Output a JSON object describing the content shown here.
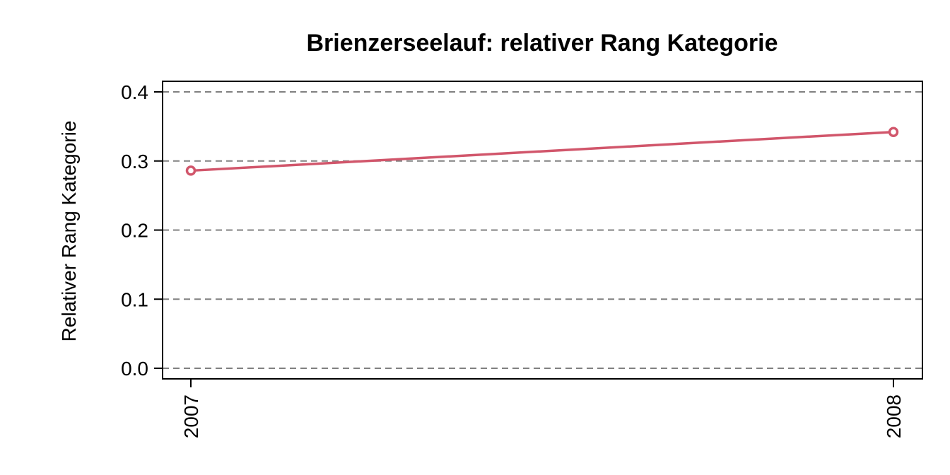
{
  "chart_data": {
    "type": "line",
    "title": "Brienzerseelauf: relativer Rang Kategorie",
    "xlabel": "",
    "ylabel": "Relativer Rang Kategorie",
    "categories": [
      "2007",
      "2008"
    ],
    "series": [
      {
        "values": [
          0.286,
          0.342
        ],
        "color": "#d1566b"
      }
    ],
    "ylim": [
      0.0,
      0.4
    ],
    "yticks": [
      "0.0",
      "0.1",
      "0.2",
      "0.3",
      "0.4"
    ],
    "grid": "horizontal dashed",
    "x_tick_orientation": "vertical"
  }
}
